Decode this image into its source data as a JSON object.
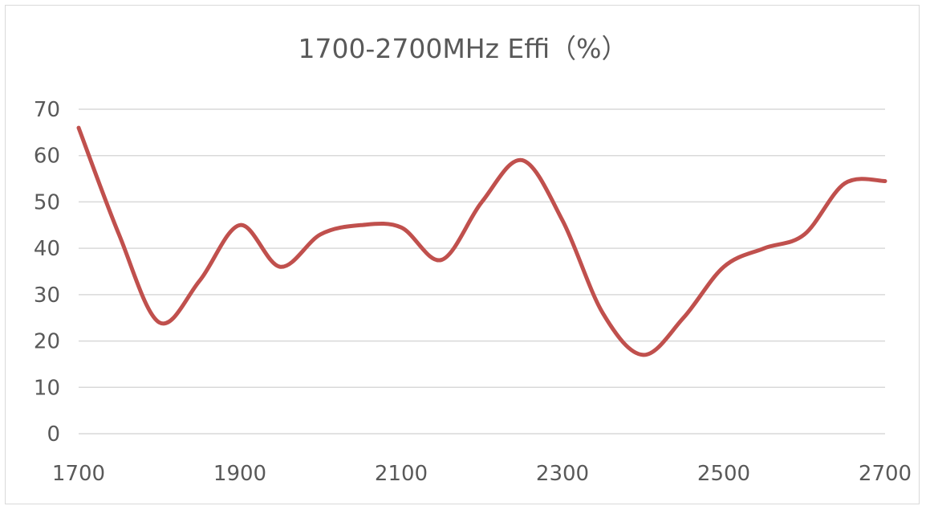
{
  "chart_data": {
    "type": "line",
    "title": "1700-2700MHz Effi（%）",
    "xlabel": "",
    "ylabel": "",
    "xlim": [
      1700,
      2700
    ],
    "ylim": [
      0,
      70
    ],
    "x_ticks": [
      "1700",
      "1900",
      "2100",
      "2300",
      "2500",
      "2700"
    ],
    "y_ticks": [
      "0",
      "10",
      "20",
      "30",
      "40",
      "50",
      "60",
      "70"
    ],
    "grid": true,
    "legend": "none",
    "series": [
      {
        "color": "#c0504d",
        "x": [
          1700,
          1750,
          1800,
          1850,
          1900,
          1950,
          2000,
          2050,
          2100,
          2150,
          2200,
          2250,
          2300,
          2350,
          2400,
          2450,
          2500,
          2550,
          2600,
          2650,
          2700
        ],
        "y": [
          66,
          43,
          24,
          33,
          45,
          36,
          43,
          45,
          44.5,
          37.5,
          50,
          59,
          46,
          26,
          17,
          25,
          36,
          40,
          43,
          54,
          54.5
        ]
      }
    ]
  }
}
